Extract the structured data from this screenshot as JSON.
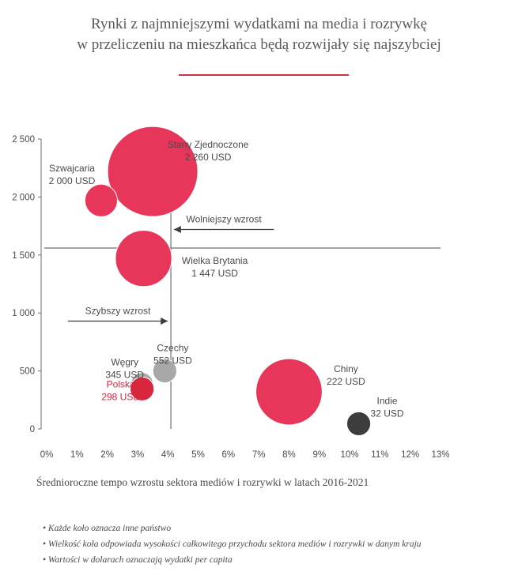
{
  "title_line1": "Rynki z najmniejszymi wydatkami na media i rozrywkę",
  "title_line2": "w przeliczeniu na mieszkańca będą rozwijały się najszybciej",
  "colors": {
    "accent": "#e8365a",
    "rule": "#c9364c",
    "dark": "#3d3d3d",
    "grey": "#a8a8a8",
    "axis": "#6e6e6e",
    "text": "#4a4a4a",
    "highlight": "#d8263f"
  },
  "chart_data": {
    "type": "scatter",
    "title": "Rynki z najmniejszymi wydatkami na media i rozrywkę w przeliczeniu na mieszkańca będą rozwijały się najszybciej",
    "xlabel": "Średnioroczne tempo wzrostu sektora mediów i rozrywki w latach 2016-2021",
    "xlim": [
      0,
      13
    ],
    "ylim": [
      0,
      2500
    ],
    "x_ticks": [
      "0%",
      "1%",
      "2%",
      "3%",
      "4%",
      "5%",
      "6%",
      "7%",
      "8%",
      "9%",
      "10%",
      "11%",
      "12%",
      "13%"
    ],
    "y_ticks": [
      "0",
      "500",
      "1 000",
      "1 500",
      "2 000",
      "2 500"
    ],
    "x_tick_values": [
      0,
      1,
      2,
      3,
      4,
      5,
      6,
      7,
      8,
      9,
      10,
      11,
      12,
      13
    ],
    "y_tick_values": [
      0,
      500,
      1000,
      1500,
      2000,
      2500
    ],
    "reference_lines": {
      "x": 4.1,
      "y": 1560
    },
    "points": [
      {
        "name": "Stany Zjednoczone",
        "label": "2 260 USD",
        "x": 3.5,
        "y": 2220,
        "size": 100,
        "color": "#e8365a",
        "text_color": "#4a4a4a"
      },
      {
        "name": "Szwajcaria",
        "label": "2 000 USD",
        "x": 1.8,
        "y": 1970,
        "size": 13,
        "color": "#e8365a",
        "text_color": "#4a4a4a"
      },
      {
        "name": "Wielka Brytania",
        "label": "1 447 USD",
        "x": 3.2,
        "y": 1470,
        "size": 39,
        "color": "#e8365a",
        "text_color": "#4a4a4a"
      },
      {
        "name": "Czechy",
        "label": "552 USD",
        "x": 3.9,
        "y": 500,
        "size": 7,
        "color": "#a8a8a8",
        "text_color": "#4a4a4a"
      },
      {
        "name": "Węgry",
        "label": "345 USD",
        "x": 3.15,
        "y": 390,
        "size": 6,
        "color": "#a8a8a8",
        "text_color": "#4a4a4a"
      },
      {
        "name": "Polska",
        "label": "298 USD",
        "x": 3.15,
        "y": 345,
        "size": 7,
        "color": "#d8263f",
        "text_color": "#d8263f"
      },
      {
        "name": "Chiny",
        "label": "222 USD",
        "x": 8.0,
        "y": 320,
        "size": 54,
        "color": "#e8365a",
        "text_color": "#4a4a4a"
      },
      {
        "name": "Indie",
        "label": "32 USD",
        "x": 10.3,
        "y": 45,
        "size": 7,
        "color": "#3d3d3d",
        "text_color": "#4a4a4a"
      }
    ],
    "annotations": [
      {
        "text": "Wolniejszy wzrost",
        "direction": "left",
        "x_from": 7.5,
        "x_to": 4.2,
        "y": 1720
      },
      {
        "text": "Szybszy wzrost",
        "direction": "right",
        "x_from": 0.7,
        "x_to": 4.0,
        "y": 930
      }
    ],
    "grid": false
  },
  "notes": [
    "Każde koło oznacza inne państwo",
    "Wielkość koła odpowiada wysokości całkowitego przychodu sektora mediów i rozrywki w danym kraju",
    "Wartości w dolarach oznaczają wydatki per capita"
  ]
}
